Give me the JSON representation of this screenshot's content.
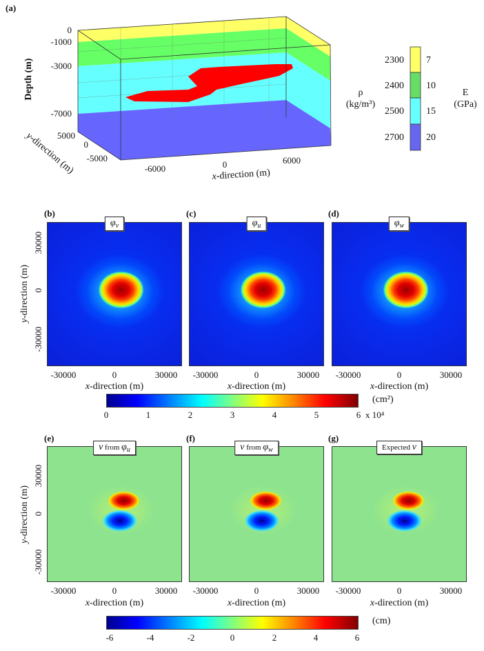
{
  "panels": {
    "a": "(a)",
    "b": "(b)",
    "c": "(c)",
    "d": "(d)",
    "e": "(e)",
    "f": "(f)",
    "g": "(g)"
  },
  "panel_a": {
    "depth_label": "Depth (m)",
    "depth_ticks": [
      "0",
      "-1000",
      "-3000",
      "-7000"
    ],
    "y_ticks": [
      "5000",
      "0",
      "-5000"
    ],
    "x_ticks": [
      "-6000",
      "0",
      "6000"
    ],
    "x_label_italic": "x",
    "x_label_rest": "-direction (m)",
    "y_label_italic": "y",
    "y_label_rest": "-direction (m)",
    "layer_colors": [
      "#ffff66",
      "#66ff66",
      "#66ffff",
      "#6666ff"
    ],
    "anomaly_color": "#ff0000",
    "legend": {
      "rho_symbol": "ρ",
      "rho_unit": "(kg/m³)",
      "E_symbol": "E",
      "E_unit": "(GPa)",
      "densities": [
        "2300",
        "2400",
        "2500",
        "2700"
      ],
      "moduli": [
        "7",
        "10",
        "15",
        "20"
      ]
    }
  },
  "top_row": {
    "titles": [
      {
        "sym": "φ",
        "sub": "v"
      },
      {
        "sym": "φ",
        "sub": "u"
      },
      {
        "sym": "φ",
        "sub": "w"
      }
    ],
    "x_ticks": [
      "-30000",
      "0",
      "30000"
    ],
    "y_ticks": [
      "30000",
      "0",
      "-30000"
    ],
    "x_label_italic": "x",
    "x_label_rest": "-direction (m)",
    "y_label_italic": "y",
    "y_label_rest": "-direction (m)",
    "colorbar": {
      "ticks": [
        "0",
        "1",
        "2",
        "3",
        "4",
        "5",
        "6"
      ],
      "unit": "(cm²)",
      "multiplier": "x 10⁴"
    }
  },
  "bottom_row": {
    "titles": [
      {
        "v": "v",
        "from": " from ",
        "sym": "φ",
        "sub": "u"
      },
      {
        "v": "v",
        "from": " from ",
        "sym": "φ",
        "sub": "w"
      },
      {
        "prefix": "Expected ",
        "v": "v"
      }
    ],
    "x_ticks": [
      "-30000",
      "0",
      "30000"
    ],
    "y_ticks": [
      "30000",
      "0",
      "-30000"
    ],
    "x_label_italic": "x",
    "x_label_rest": "-direction (m)",
    "y_label_italic": "y",
    "y_label_rest": "-direction (m)",
    "colorbar": {
      "ticks": [
        "-6",
        "-4",
        "-2",
        "0",
        "2",
        "4",
        "6"
      ],
      "unit": "(cm)"
    }
  },
  "chart_data": [
    {
      "type": "heatmap",
      "title": "φv",
      "xlabel": "x-direction (m)",
      "ylabel": "y-direction (m)",
      "xlim": [
        -35000,
        35000
      ],
      "ylim": [
        -35000,
        35000
      ],
      "peak": {
        "x": 5000,
        "y": 2000,
        "value": 60000
      },
      "clim": [
        0,
        60000
      ],
      "unit": "cm²"
    },
    {
      "type": "heatmap",
      "title": "φu",
      "xlim": [
        -35000,
        35000
      ],
      "ylim": [
        -35000,
        35000
      ],
      "peak": {
        "x": 5000,
        "y": 2000,
        "value": 60000
      },
      "clim": [
        0,
        60000
      ]
    },
    {
      "type": "heatmap",
      "title": "φw",
      "xlim": [
        -35000,
        35000
      ],
      "ylim": [
        -35000,
        35000
      ],
      "peak": {
        "x": 5000,
        "y": 2000,
        "value": 60000
      },
      "clim": [
        0,
        60000
      ]
    },
    {
      "type": "heatmap",
      "title": "v from φu",
      "xlim": [
        -35000,
        35000
      ],
      "ylim": [
        -35000,
        35000
      ],
      "max": {
        "x": 5000,
        "y": 8000,
        "value": 6
      },
      "min": {
        "x": 3000,
        "y": -5000,
        "value": -6
      },
      "clim": [
        -6,
        6
      ],
      "unit": "cm"
    },
    {
      "type": "heatmap",
      "title": "v from φw",
      "clim": [
        -6,
        6
      ]
    },
    {
      "type": "heatmap",
      "title": "Expected v",
      "clim": [
        -6,
        6
      ]
    }
  ]
}
